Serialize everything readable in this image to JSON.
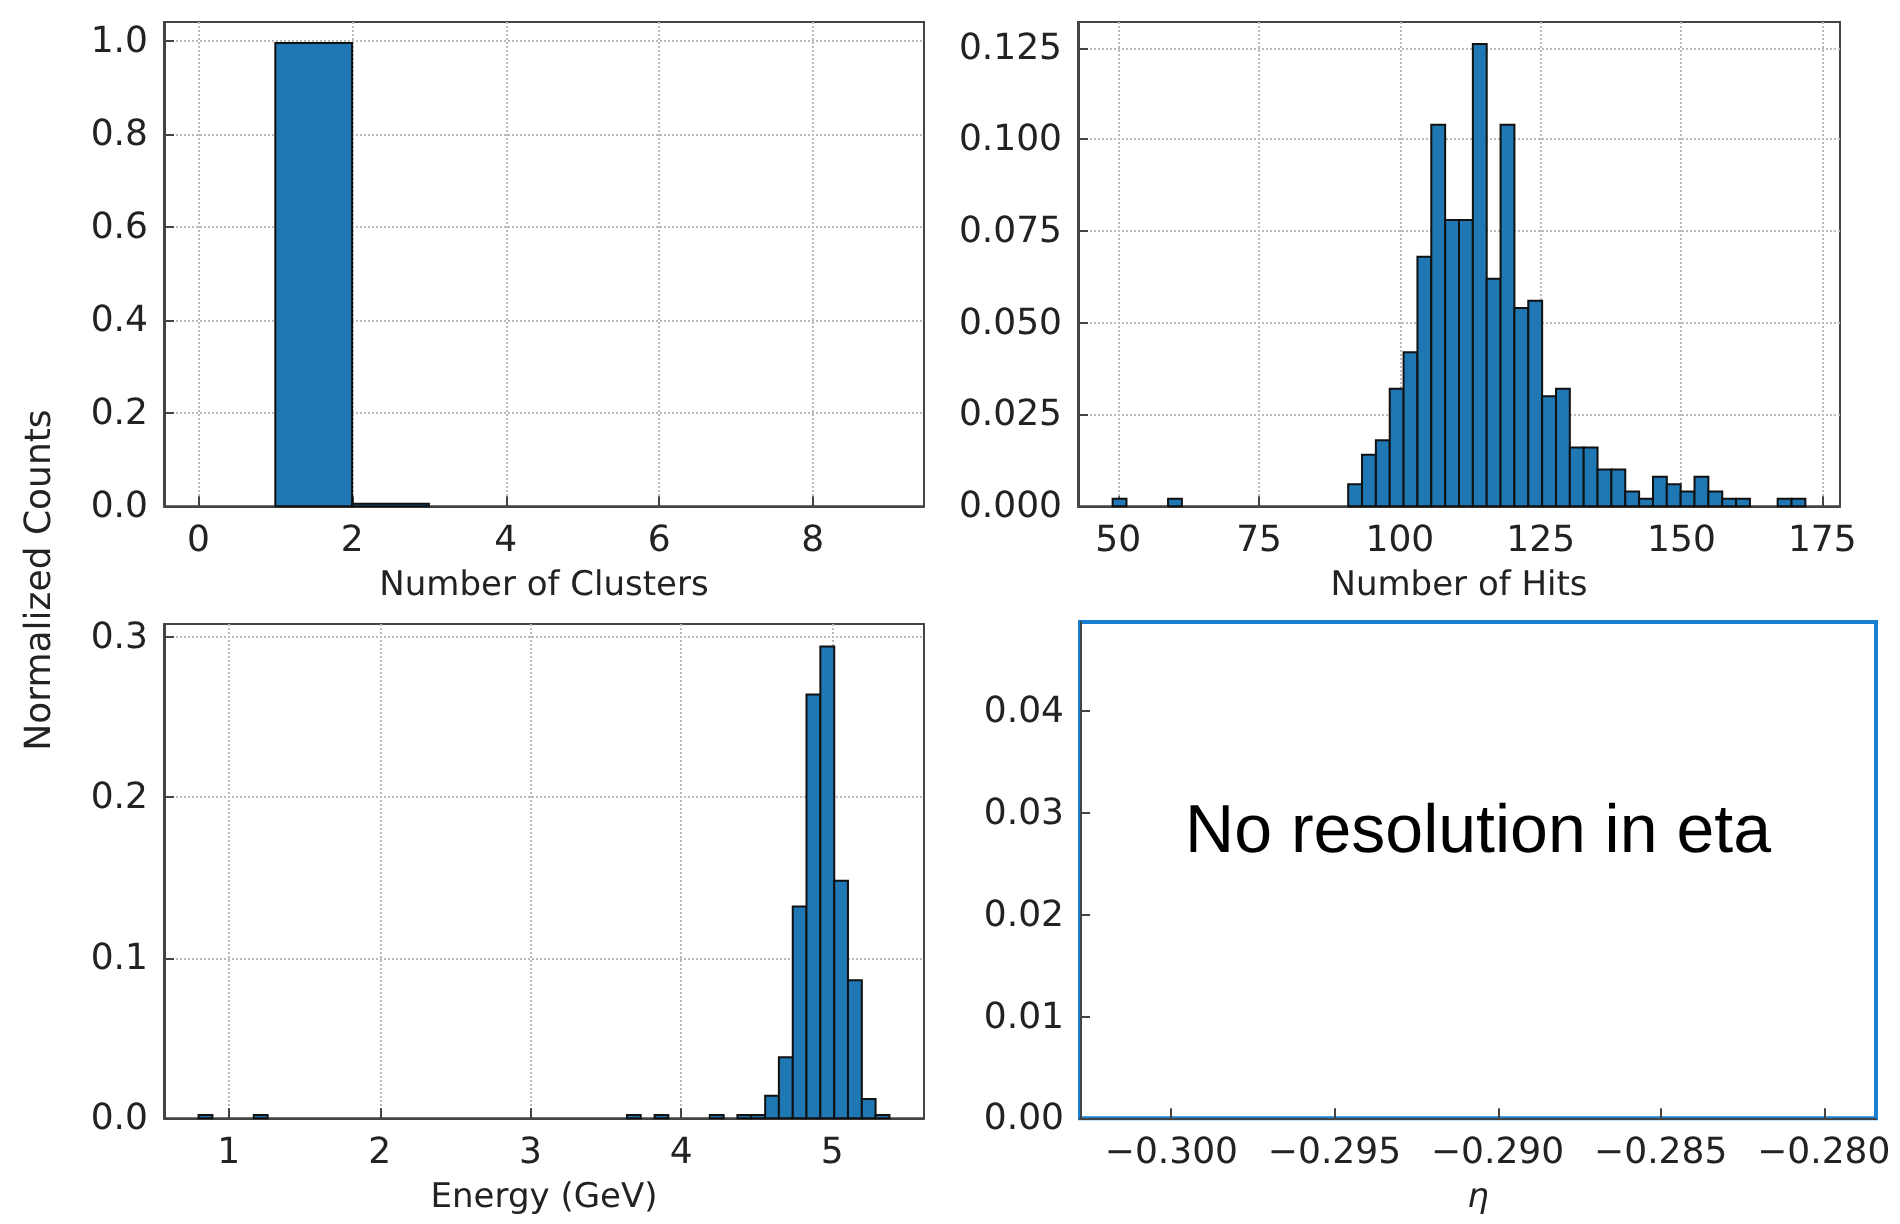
{
  "chart_data": [
    {
      "type": "histogram",
      "xlabel": "Number of Clusters",
      "ylabel": "Normalized Counts",
      "color": "#1f77b4",
      "grid": true,
      "bins": [
        0,
        1,
        2,
        3,
        4,
        5,
        6,
        7,
        8,
        9
      ],
      "values": [
        0,
        0.995,
        0.005,
        0,
        0,
        0,
        0,
        0,
        0
      ],
      "xlim": [
        -0.45,
        9.45
      ],
      "xticks": [
        0,
        2,
        4,
        6,
        8
      ],
      "ylim": [
        0,
        1.04
      ],
      "yticks": [
        {
          "value": 0,
          "label": "0.0"
        },
        {
          "value": 0.2,
          "label": "0.2"
        },
        {
          "value": 0.4,
          "label": "0.4"
        },
        {
          "value": 0.6,
          "label": "0.6"
        },
        {
          "value": 0.8,
          "label": "0.8"
        },
        {
          "value": 1,
          "label": "1.0"
        }
      ]
    },
    {
      "type": "histogram",
      "xlabel": "Number of Hits",
      "color": "#1f77b4",
      "grid": true,
      "bins": [
        49,
        51.46,
        53.92,
        56.38,
        58.84,
        61.3,
        63.76,
        66.22,
        68.68,
        71.14,
        73.6,
        76.06,
        78.52,
        80.98,
        83.44,
        85.9,
        88.36,
        90.82,
        93.28,
        95.74,
        98.2,
        100.66,
        103.12,
        105.58,
        108.04,
        110.5,
        112.96,
        115.42,
        117.88,
        120.34,
        122.8,
        125.26,
        127.72,
        130.18,
        132.64,
        135.1,
        137.56,
        140.02,
        142.48,
        144.94,
        147.4,
        149.86,
        152.32,
        154.78,
        157.24,
        159.7,
        162.16,
        164.62,
        167.08,
        169.54,
        172
      ],
      "values": [
        0.002,
        0,
        0,
        0,
        0.002,
        0,
        0,
        0,
        0,
        0,
        0,
        0,
        0,
        0,
        0,
        0,
        0,
        0.006,
        0.014,
        0.018,
        0.032,
        0.042,
        0.068,
        0.104,
        0.078,
        0.078,
        0.126,
        0.062,
        0.104,
        0.054,
        0.056,
        0.03,
        0.032,
        0.016,
        0.016,
        0.01,
        0.01,
        0.004,
        0.002,
        0.008,
        0.006,
        0.004,
        0.008,
        0.004,
        0.002,
        0.002,
        0,
        0,
        0.002,
        0.002
      ],
      "xlim": [
        42.85,
        178.15
      ],
      "xticks": [
        50,
        75,
        100,
        125,
        150,
        175
      ],
      "ylim": [
        0,
        0.132
      ],
      "yticks": [
        {
          "value": 0,
          "label": "0.000"
        },
        {
          "value": 0.025,
          "label": "0.025"
        },
        {
          "value": 0.05,
          "label": "0.050"
        },
        {
          "value": 0.075,
          "label": "0.075"
        },
        {
          "value": 0.1,
          "label": "0.100"
        },
        {
          "value": 0.125,
          "label": "0.125"
        }
      ]
    },
    {
      "type": "histogram",
      "xlabel": "Energy (GeV)",
      "color": "#1f77b4",
      "grid": true,
      "bins": [
        0.8,
        0.892,
        0.983,
        1.075,
        1.166,
        1.258,
        1.35,
        1.441,
        1.533,
        1.624,
        1.716,
        1.808,
        1.899,
        1.991,
        2.082,
        2.174,
        2.266,
        2.357,
        2.449,
        2.54,
        2.632,
        2.724,
        2.815,
        2.907,
        2.998,
        3.09,
        3.182,
        3.273,
        3.365,
        3.456,
        3.548,
        3.64,
        3.731,
        3.823,
        3.914,
        4.006,
        4.098,
        4.189,
        4.281,
        4.372,
        4.464,
        4.556,
        4.647,
        4.739,
        4.83,
        4.922,
        5.014,
        5.105,
        5.197,
        5.288,
        5.38
      ],
      "values": [
        0.002,
        0,
        0,
        0,
        0.002,
        0,
        0,
        0,
        0,
        0,
        0,
        0,
        0,
        0,
        0,
        0,
        0,
        0,
        0,
        0,
        0,
        0,
        0,
        0,
        0,
        0,
        0,
        0,
        0,
        0,
        0,
        0.002,
        0,
        0.002,
        0,
        0,
        0,
        0.002,
        0,
        0.002,
        0.002,
        0.014,
        0.038,
        0.132,
        0.264,
        0.294,
        0.148,
        0.086,
        0.012,
        0.002
      ],
      "xlim": [
        0.571,
        5.609
      ],
      "xticks": [
        1,
        2,
        3,
        4,
        5
      ],
      "ylim": [
        0,
        0.308
      ],
      "yticks": [
        {
          "value": 0,
          "label": "0.0"
        },
        {
          "value": 0.1,
          "label": "0.1"
        },
        {
          "value": 0.2,
          "label": "0.2"
        },
        {
          "value": 0.3,
          "label": "0.3"
        }
      ]
    },
    {
      "type": "scatter",
      "xlabel": "η",
      "annotations": [
        "No resolution in eta"
      ],
      "xlim": [
        -0.3028,
        -0.2784
      ],
      "xticks": [
        {
          "value": -0.3,
          "label": "−0.300"
        },
        {
          "value": -0.295,
          "label": "−0.295"
        },
        {
          "value": -0.29,
          "label": "−0.290"
        },
        {
          "value": -0.285,
          "label": "−0.285"
        },
        {
          "value": -0.28,
          "label": "−0.280"
        }
      ],
      "ylim": [
        0,
        0.0488
      ],
      "yticks": [
        {
          "value": 0,
          "label": "0.00"
        },
        {
          "value": 0.01,
          "label": "0.01"
        },
        {
          "value": 0.02,
          "label": "0.02"
        },
        {
          "value": 0.03,
          "label": "0.03"
        },
        {
          "value": 0.04,
          "label": "0.04"
        }
      ]
    }
  ]
}
